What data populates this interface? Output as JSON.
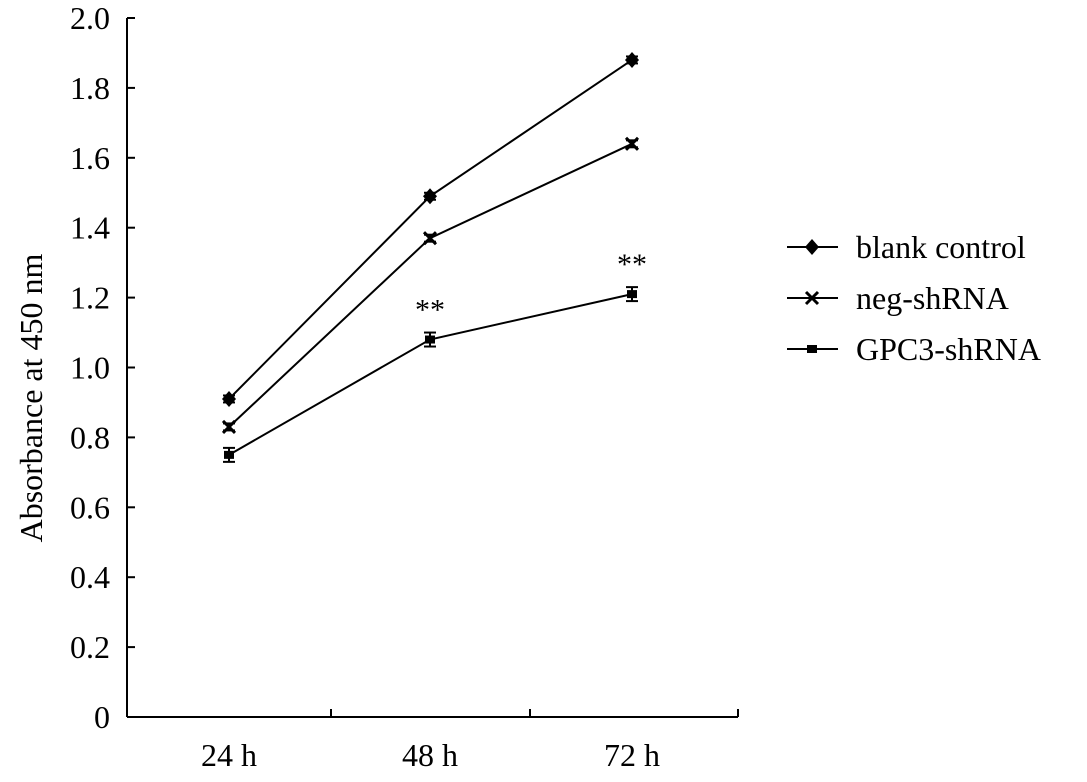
{
  "chart_data": {
    "type": "line",
    "title": "",
    "xlabel": "",
    "ylabel": "Absorbance at 450 nm",
    "categories": [
      "24 h",
      "48 h",
      "72 h"
    ],
    "ylim": [
      0,
      2.0
    ],
    "yticks": [
      0,
      0.2,
      0.4,
      0.6,
      0.8,
      1.0,
      1.2,
      1.4,
      1.6,
      1.8,
      2.0
    ],
    "ytick_labels": [
      "0",
      "0.2",
      "0.4",
      "0.6",
      "0.8",
      "1.0",
      "1.2",
      "1.4",
      "1.6",
      "1.8",
      "2.0"
    ],
    "grid": false,
    "legend_position": "right",
    "series": [
      {
        "name": "blank control",
        "marker": "diamond",
        "values": [
          0.91,
          1.49,
          1.88
        ],
        "errors": [
          0.01,
          0.01,
          0.01
        ]
      },
      {
        "name": "neg-shRNA",
        "marker": "x",
        "values": [
          0.83,
          1.37,
          1.64
        ],
        "errors": [
          0.01,
          0.01,
          0.01
        ]
      },
      {
        "name": "GPC3-shRNA",
        "marker": "bar",
        "values": [
          0.75,
          1.08,
          1.21
        ],
        "errors": [
          0.02,
          0.02,
          0.02
        ]
      }
    ],
    "annotations": [
      {
        "text": "**",
        "category": "48 h",
        "y": 1.08
      },
      {
        "text": "**",
        "category": "72 h",
        "y": 1.21
      }
    ]
  }
}
